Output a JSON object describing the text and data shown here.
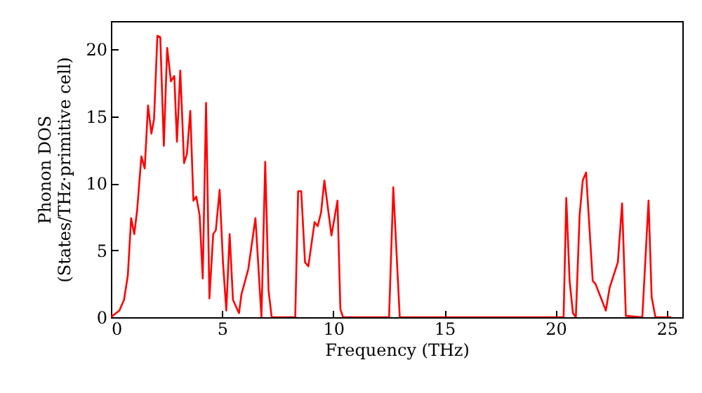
{
  "chart_data": {
    "type": "line",
    "xlabel": "Frequency (THz)",
    "ylabel": "Phonon DOS\n(States/THz·primitive cell)",
    "xlim": [
      0,
      25.7
    ],
    "ylim": [
      0,
      22.1
    ],
    "xticks": [
      0,
      5,
      10,
      15,
      20,
      25
    ],
    "yticks": [
      0,
      5,
      10,
      15,
      20
    ],
    "grid": false,
    "series": [
      {
        "color": "#ff0000",
        "x": [
          0,
          0.38,
          0.59,
          0.76,
          0.91,
          1.05,
          1.18,
          1.37,
          1.52,
          1.67,
          1.82,
          1.94,
          2.09,
          2.22,
          2.38,
          2.53,
          2.7,
          2.85,
          2.97,
          3.12,
          3.29,
          3.42,
          3.57,
          3.71,
          3.84,
          3.99,
          4.13,
          4.28,
          4.43,
          4.6,
          4.72,
          4.89,
          5.04,
          5.19,
          5.34,
          5.49,
          5.76,
          5.87,
          6.18,
          6.5,
          6.77,
          6.94,
          7.09,
          7.23,
          8.29,
          8.42,
          8.56,
          8.73,
          8.88,
          9.16,
          9.3,
          9.45,
          9.6,
          9.92,
          10.19,
          10.32,
          10.44,
          12.51,
          12.7,
          12.99,
          20.36,
          20.48,
          20.63,
          20.78,
          20.91,
          21.08,
          21.22,
          21.37,
          21.67,
          21.79,
          22.26,
          22.43,
          22.8,
          22.99,
          23.16,
          23.9,
          24.18,
          24.32,
          24.49,
          25.2
        ],
        "values": [
          0,
          0.5,
          1.3,
          3.1,
          7.4,
          6.2,
          8.0,
          12.0,
          11.1,
          15.8,
          13.7,
          14.8,
          21.0,
          20.9,
          12.8,
          20.1,
          17.6,
          18.0,
          13.1,
          18.4,
          11.5,
          12.2,
          15.4,
          8.7,
          9.0,
          7.6,
          2.9,
          16.0,
          1.4,
          6.2,
          6.5,
          9.5,
          4.1,
          0.5,
          6.2,
          1.3,
          0.3,
          1.7,
          3.6,
          7.4,
          0,
          11.6,
          2.0,
          0,
          0,
          9.4,
          9.4,
          4.1,
          3.8,
          7.1,
          6.8,
          7.8,
          10.2,
          6.1,
          8.7,
          0.6,
          0,
          0,
          9.7,
          0,
          0,
          8.9,
          2.7,
          0.3,
          0,
          7.6,
          10.2,
          10.8,
          2.7,
          2.5,
          0.5,
          2.2,
          4.1,
          8.5,
          0.1,
          0,
          8.7,
          1.5,
          0,
          0
        ]
      }
    ]
  }
}
